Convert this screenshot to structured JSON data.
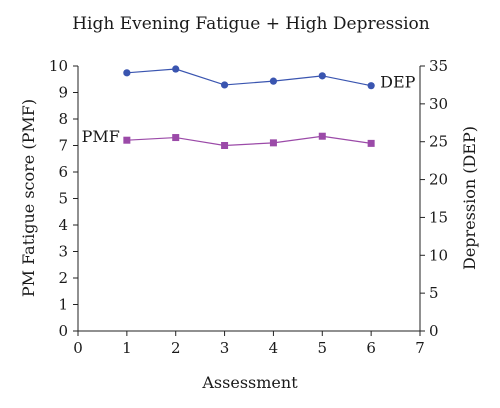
{
  "chart_data": {
    "type": "line",
    "title": "High Evening Fatigue + High Depression",
    "xlabel": "Assessment",
    "ylabel_left": "PM Fatigue score (PMF)",
    "ylabel_right": "Depression (DEP)",
    "xlim": [
      0,
      7
    ],
    "xticks": [
      0,
      1,
      2,
      3,
      4,
      5,
      6,
      7
    ],
    "ylim_left": [
      0,
      10
    ],
    "yticks_left": [
      0,
      1,
      2,
      3,
      4,
      5,
      6,
      7,
      8,
      9,
      10
    ],
    "ylim_right": [
      0,
      35
    ],
    "yticks_right": [
      0,
      5,
      10,
      15,
      20,
      25,
      30,
      35
    ],
    "grid": false,
    "series": [
      {
        "name": "PMF",
        "axis": "left",
        "marker": "square",
        "color": "#9b4aa8",
        "x": [
          1,
          2,
          3,
          4,
          5,
          6
        ],
        "y": [
          7.2,
          7.3,
          7.0,
          7.1,
          7.35,
          7.08
        ]
      },
      {
        "name": "DEP",
        "axis": "right",
        "marker": "circle",
        "color": "#3a55b0",
        "x": [
          1,
          2,
          3,
          4,
          5,
          6
        ],
        "y": [
          34.1,
          34.6,
          32.5,
          33.0,
          33.7,
          32.4
        ]
      }
    ]
  }
}
